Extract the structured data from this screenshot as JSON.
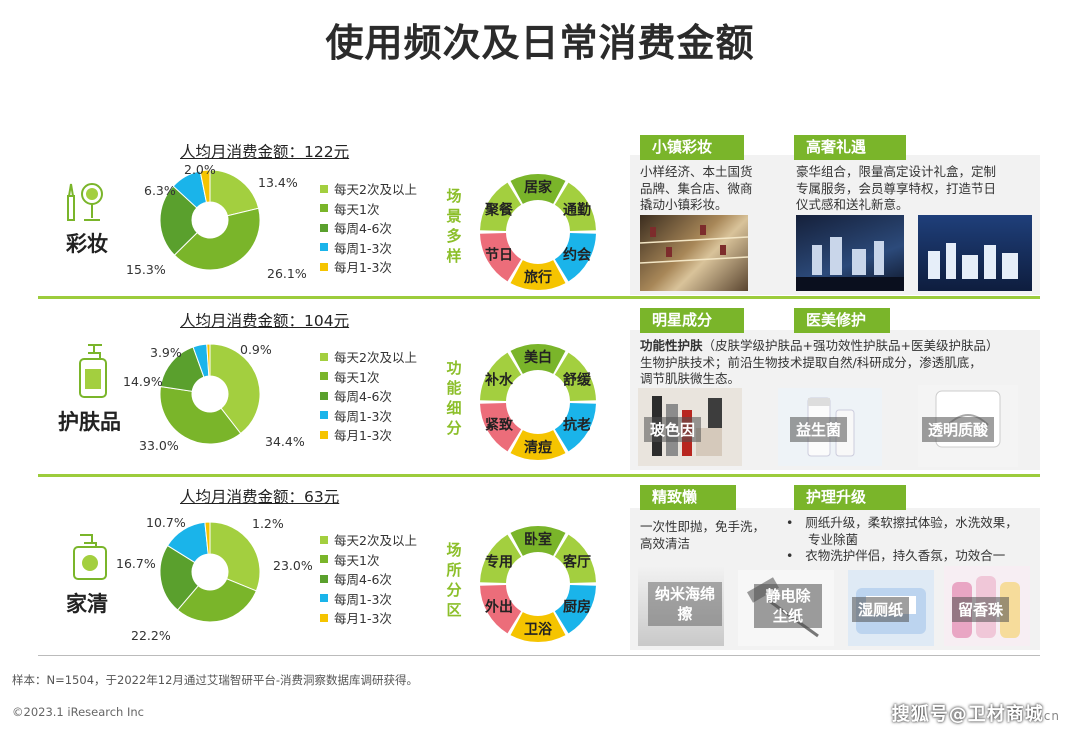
{
  "title": "使用频次及日常消费金额",
  "legend_labels": [
    "每天2次及以上",
    "每天1次",
    "每周4-6次",
    "每周1-3次",
    "每月1-3次"
  ],
  "colors": [
    "#a3cf3f",
    "#7ab52a",
    "#5aa02d",
    "#1ab4ea",
    "#f5c400"
  ],
  "chart_data": [
    {
      "type": "pie",
      "category": "彩妆",
      "monthly_spend": "人均月消费金额：122元",
      "labels": [
        "每天2次及以上",
        "每天1次",
        "每周4-6次",
        "每周1-3次",
        "每月1-3次"
      ],
      "values": [
        13.4,
        26.1,
        15.3,
        6.3,
        2.0
      ],
      "value_labels": [
        "13.4%",
        "26.1%",
        "15.3%",
        "6.3%",
        "2.0%"
      ]
    },
    {
      "type": "pie",
      "category": "护肤品",
      "monthly_spend": "人均月消费金额：104元",
      "labels": [
        "每天2次及以上",
        "每天1次",
        "每周4-6次",
        "每周1-3次",
        "每月1-3次"
      ],
      "values": [
        34.4,
        33.0,
        14.9,
        3.9,
        0.9
      ],
      "value_labels": [
        "34.4%",
        "33.0%",
        "14.9%",
        "3.9%",
        "0.9%"
      ]
    },
    {
      "type": "pie",
      "category": "家清",
      "monthly_spend": "人均月消费金额：63元",
      "labels": [
        "每天2次及以上",
        "每天1次",
        "每周4-6次",
        "每周1-3次",
        "每月1-3次"
      ],
      "values": [
        23.0,
        22.2,
        16.7,
        10.7,
        1.2
      ],
      "value_labels": [
        "23.0%",
        "22.2%",
        "16.7%",
        "10.7%",
        "1.2%"
      ]
    }
  ],
  "rings": [
    {
      "side_label": "场景多样",
      "segments": [
        "居家",
        "通勤",
        "约会",
        "旅行",
        "节日",
        "聚餐"
      ]
    },
    {
      "side_label": "功能细分",
      "segments": [
        "美白",
        "舒缓",
        "抗老",
        "清痘",
        "紧致",
        "补水"
      ]
    },
    {
      "side_label": "场所分区",
      "segments": [
        "卧室",
        "客厅",
        "厨房",
        "卫浴",
        "外出",
        "专用"
      ]
    }
  ],
  "ring_colors": [
    "#7ab52a",
    "#a3cf3f",
    "#1ab4ea",
    "#f5c400",
    "#ec6d7a",
    "#a3cf3f"
  ],
  "panels": {
    "makeup": {
      "tag1": "小镇彩妆",
      "desc1": [
        "小样经济、本土国货",
        "品牌、集合店、微商",
        "撬动小镇彩妆。"
      ],
      "tag2": "高奢礼遇",
      "desc2": [
        "豪华组合，限量高定设计礼盒，定制",
        "专属服务，会员尊享特权，打造节日",
        "仪式感和送礼新意。"
      ]
    },
    "skincare": {
      "tag1": "明星成分",
      "tag2": "医美修护",
      "desc_bold": "功能性护肤",
      "desc_line1": "（皮肤学级护肤品+强功效性护肤品+医美级护肤品）",
      "desc_line2": "生物护肤技术；前沿生物技术提取自然/科研成分，渗透肌底，",
      "desc_line3": "调节肌肤微生态。",
      "products": [
        "玻色因",
        "益生菌",
        "透明质酸"
      ]
    },
    "home": {
      "tag1": "精致懒",
      "desc1": [
        "一次性即抛，免手洗，",
        "高效清洁"
      ],
      "tag2": "护理升级",
      "bullets": [
        "厕纸升级，柔软擦拭体验，水洗效果，",
        "专业除菌",
        "衣物洗护伴侣，持久香氛，功效合一"
      ],
      "products": [
        "纳米海绵擦",
        "静电除尘纸",
        "湿厕纸",
        "留香珠"
      ]
    }
  },
  "footnote": "样本：N=1504，于2022年12月通过艾瑞智研平台-消费洞察数据库调研获得。",
  "copyright": "©2023.1 iResearch Inc",
  "watermark": "搜狐号@卫材商城",
  "watermark_suffix": "cn"
}
